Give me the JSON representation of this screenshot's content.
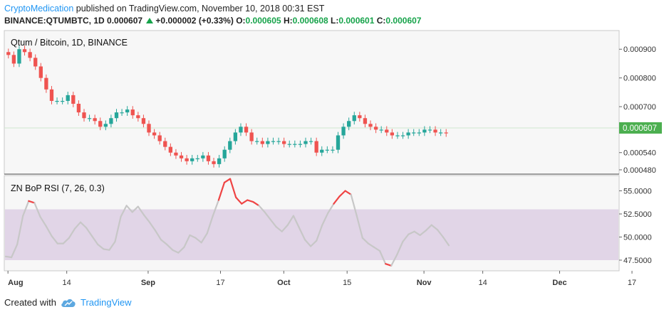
{
  "header": {
    "author": "CryptoMedication",
    "published_text": "published on TradingView.com, November 10, 2018 00:31 EST",
    "symbol": "BINANCE:QTUMBTC, 1D",
    "last": "0.000607",
    "change": "+0.000002 (+0.33%)",
    "o_label": "O:",
    "o": "0.000605",
    "h_label": "H:",
    "h": "0.000608",
    "l_label": "L:",
    "l": "0.000601",
    "c_label": "C:",
    "c": "0.000607"
  },
  "price_panel": {
    "title": "Qtum / Bitcoin, 1D, BINANCE",
    "y_ticks": [
      "0.000900",
      "0.000800",
      "0.000700",
      "0.000540",
      "0.000480"
    ],
    "last_price_badge": "0.000607"
  },
  "indicator_panel": {
    "title": "ZN BoP RSI (7, 26, 0.3)",
    "y_ticks": [
      "55.0000",
      "52.5000",
      "50.0000",
      "47.5000"
    ]
  },
  "time_axis": [
    "Aug",
    "14",
    "Sep",
    "17",
    "Oct",
    "15",
    "Nov",
    "14",
    "Dec",
    "17"
  ],
  "footer": {
    "created_with": "Created with",
    "tradingview": "TradingView"
  },
  "colors": {
    "up": "#26a69a",
    "down": "#ef5350",
    "brand": "#2196f3",
    "band": "#e1d5e7",
    "rsi_line": "#c7c7c7",
    "rsi_hot": "#ef4444"
  },
  "chart_data": [
    {
      "type": "candlestick",
      "title": "Qtum / Bitcoin, 1D, BINANCE",
      "ylim": [
        0.00047,
        0.00096
      ],
      "candles_close_approx": [
        0.00088,
        0.00085,
        0.0009,
        0.00089,
        0.00087,
        0.00084,
        0.0008,
        0.00076,
        0.00072,
        0.00072,
        0.00072,
        0.00074,
        0.00071,
        0.00068,
        0.00066,
        0.00066,
        0.00065,
        0.00063,
        0.00064,
        0.00066,
        0.00068,
        0.00068,
        0.00069,
        0.00067,
        0.00066,
        0.00064,
        0.00061,
        0.0006,
        0.00058,
        0.00056,
        0.00054,
        0.00053,
        0.00052,
        0.00051,
        0.00052,
        0.00052,
        0.00053,
        0.00051,
        0.0005,
        0.00052,
        0.00055,
        0.00058,
        0.00061,
        0.00063,
        0.00061,
        0.00058,
        0.00058,
        0.00057,
        0.00058,
        0.00058,
        0.00058,
        0.00057,
        0.00057,
        0.00057,
        0.00057,
        0.00058,
        0.00058,
        0.00054,
        0.00055,
        0.00055,
        0.00055,
        0.0006,
        0.00063,
        0.00065,
        0.00067,
        0.00066,
        0.00064,
        0.00063,
        0.00062,
        0.00062,
        0.00061,
        0.0006,
        0.0006,
        0.0006,
        0.00061,
        0.00061,
        0.00061,
        0.00062,
        0.00062,
        0.00061,
        0.00061,
        0.000607
      ]
    },
    {
      "type": "line",
      "title": "ZN BoP RSI (7, 26, 0.3)",
      "ylim": [
        46.5,
        56.5
      ],
      "band": [
        47.5,
        53.0
      ],
      "values": [
        47.9,
        47.8,
        49.2,
        52.3,
        53.9,
        53.7,
        52.2,
        51.2,
        50.1,
        49.3,
        49.3,
        49.9,
        50.9,
        51.6,
        51.0,
        50.1,
        49.2,
        48.7,
        48.6,
        49.5,
        52.2,
        53.4,
        52.7,
        53.3,
        52.4,
        51.6,
        50.7,
        49.7,
        49.2,
        48.6,
        48.3,
        48.9,
        50.2,
        49.9,
        49.4,
        50.4,
        52.3,
        54.0,
        55.9,
        56.3,
        54.3,
        53.6,
        54.0,
        53.8,
        53.4,
        52.7,
        51.9,
        51.1,
        50.6,
        51.3,
        52.3,
        51.0,
        49.7,
        49.0,
        49.6,
        51.3,
        52.6,
        53.6,
        54.4,
        55.0,
        54.6,
        52.3,
        49.9,
        49.3,
        48.9,
        48.5,
        47.1,
        46.9,
        48.1,
        49.5,
        50.3,
        50.6,
        50.2,
        50.7,
        51.3,
        50.8,
        50.0,
        49.1
      ]
    }
  ]
}
